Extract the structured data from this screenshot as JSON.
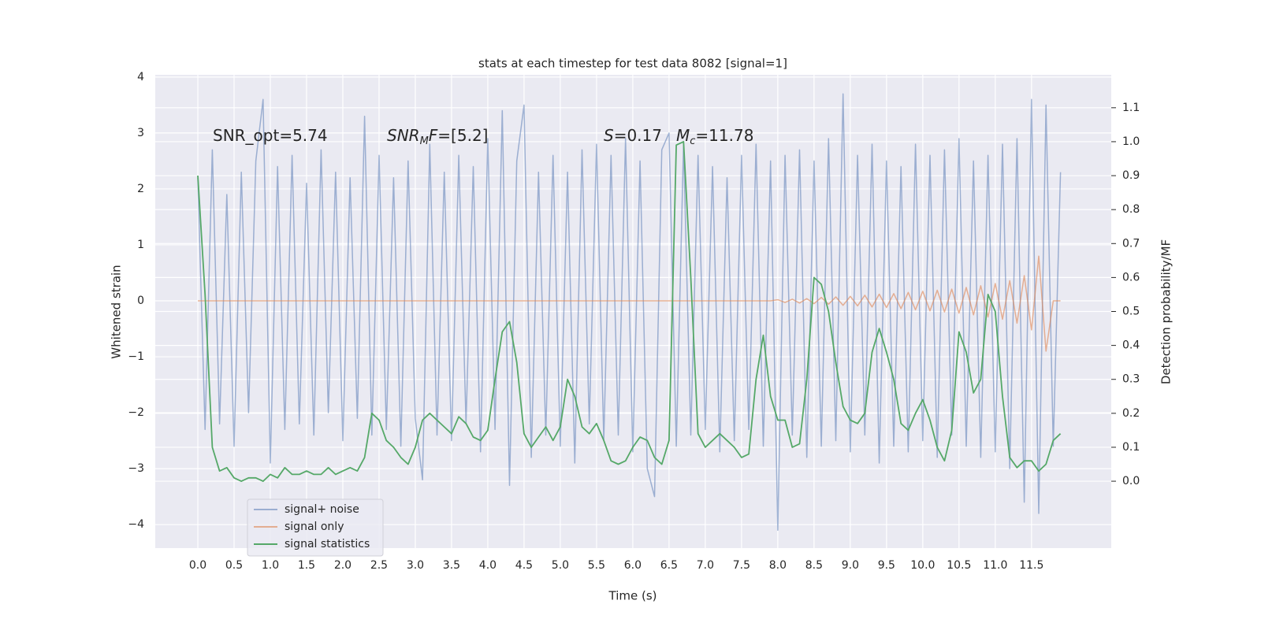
{
  "chart_data": {
    "type": "line",
    "title": "stats at each timestep for test data 8082 [signal=1]",
    "xlabel": "Time (s)",
    "ylabel": "Whitened strain",
    "y2label": "Detection probability/MF",
    "annotations": [
      [
        {
          "text": "SNR_opt=5.74"
        }
      ],
      [
        {
          "text": "SNR",
          "italic": true
        },
        {
          "text": "M",
          "italic": true,
          "sub": true
        },
        {
          "text": "F",
          "italic": true
        },
        {
          "text": "=[5.2]"
        }
      ],
      [
        {
          "text": "S",
          "italic": true
        },
        {
          "text": "=0.17"
        }
      ],
      [
        {
          "text": "M",
          "italic": true
        },
        {
          "text": "c",
          "italic": true,
          "sub": true
        },
        {
          "text": "=11.78"
        }
      ]
    ],
    "x": [
      0,
      0.1,
      0.2,
      0.3,
      0.4,
      0.5,
      0.6,
      0.7,
      0.8,
      0.9,
      1,
      1.1,
      1.2,
      1.3,
      1.4,
      1.5,
      1.6,
      1.7,
      1.8,
      1.9,
      2,
      2.1,
      2.2,
      2.3,
      2.4,
      2.5,
      2.6,
      2.7,
      2.8,
      2.9,
      3,
      3.1,
      3.2,
      3.3,
      3.4,
      3.5,
      3.6,
      3.7,
      3.8,
      3.9,
      4,
      4.1,
      4.2,
      4.3,
      4.4,
      4.5,
      4.6,
      4.7,
      4.8,
      4.9,
      5,
      5.1,
      5.2,
      5.3,
      5.4,
      5.5,
      5.6,
      5.7,
      5.8,
      5.9,
      6,
      6.1,
      6.2,
      6.3,
      6.4,
      6.5,
      6.6,
      6.7,
      6.8,
      6.9,
      7,
      7.1,
      7.2,
      7.3,
      7.4,
      7.5,
      7.6,
      7.7,
      7.8,
      7.9,
      8,
      8.1,
      8.2,
      8.3,
      8.4,
      8.5,
      8.6,
      8.7,
      8.8,
      8.9,
      9,
      9.1,
      9.2,
      9.3,
      9.4,
      9.5,
      9.6,
      9.7,
      9.8,
      9.9,
      10,
      10.1,
      10.2,
      10.3,
      10.4,
      10.5,
      10.6,
      10.7,
      10.8,
      10.9,
      11,
      11.1,
      11.2,
      11.3,
      11.4,
      11.5,
      11.6,
      11.7,
      11.8,
      11.9
    ],
    "series": [
      {
        "name": "signal+ noise",
        "color": "#4c72b0",
        "opacity": 0.5,
        "axis": "y",
        "values": [
          2.2,
          -2.3,
          2.7,
          -2.2,
          1.9,
          -2.6,
          2.3,
          -2.0,
          2.5,
          3.6,
          -2.9,
          2.4,
          -2.3,
          2.6,
          -2.2,
          2.1,
          -2.4,
          2.7,
          -2.0,
          2.3,
          -2.5,
          2.2,
          -2.1,
          3.3,
          -2.4,
          2.6,
          -2.3,
          2.2,
          -2.6,
          2.5,
          -2.1,
          -3.2,
          2.8,
          -2.4,
          2.3,
          -2.5,
          2.6,
          -2.2,
          2.4,
          -2.7,
          2.9,
          -2.3,
          3.4,
          -3.3,
          2.5,
          3.5,
          -2.8,
          2.3,
          -2.4,
          2.6,
          -2.6,
          2.3,
          -2.9,
          2.7,
          -2.2,
          2.8,
          -2.5,
          2.6,
          -2.4,
          2.9,
          -2.7,
          2.5,
          -3.0,
          -3.5,
          2.7,
          3.0,
          -2.6,
          2.8,
          -2.4,
          2.6,
          -2.3,
          2.4,
          -2.7,
          2.2,
          -2.5,
          2.6,
          -2.3,
          2.8,
          -2.6,
          2.5,
          -4.1,
          2.6,
          -2.4,
          2.7,
          -2.8,
          2.5,
          -2.6,
          2.9,
          -2.5,
          3.7,
          -2.7,
          2.6,
          -2.4,
          2.8,
          -2.9,
          2.5,
          -2.6,
          2.4,
          -2.7,
          2.8,
          -2.5,
          2.6,
          -2.8,
          2.7,
          -2.4,
          2.9,
          -2.6,
          2.5,
          -2.8,
          2.6,
          -2.7,
          2.8,
          -3.0,
          2.9,
          -3.6,
          3.6,
          -3.8,
          3.5,
          -2.6,
          2.3
        ]
      },
      {
        "name": "signal only",
        "color": "#dd8452",
        "opacity": 0.6,
        "axis": "y",
        "values": [
          0,
          0,
          0,
          0,
          0,
          0,
          0,
          0,
          0,
          0,
          0,
          0,
          0,
          0,
          0,
          0,
          0,
          0,
          0,
          0,
          0,
          0,
          0,
          0,
          0,
          0,
          0,
          0,
          0,
          0,
          0,
          0,
          0,
          0,
          0,
          0,
          0,
          0,
          0,
          0,
          0,
          0,
          0,
          0,
          0,
          0,
          0,
          0,
          0,
          0,
          0,
          0,
          0,
          0,
          0,
          0,
          0,
          0,
          0,
          0,
          0,
          0,
          0,
          0,
          0,
          0,
          0,
          0,
          0,
          0,
          0,
          0,
          0,
          0,
          0,
          0,
          0,
          0,
          0,
          0,
          0.02,
          -0.03,
          0.03,
          -0.04,
          0.04,
          -0.05,
          0.06,
          -0.06,
          0.07,
          -0.08,
          0.08,
          -0.09,
          0.1,
          -0.11,
          0.12,
          -0.12,
          0.13,
          -0.14,
          0.15,
          -0.16,
          0.17,
          -0.18,
          0.19,
          -0.2,
          0.21,
          -0.22,
          0.24,
          -0.25,
          0.27,
          -0.29,
          0.31,
          -0.33,
          0.36,
          -0.4,
          0.45,
          -0.52,
          0.8,
          -0.9,
          0,
          0
        ]
      },
      {
        "name": "signal statistics",
        "color": "#55a868",
        "opacity": 1,
        "axis": "y2",
        "values": [
          0.9,
          0.55,
          0.1,
          0.03,
          0.04,
          0.01,
          0.0,
          0.01,
          0.01,
          0.0,
          0.02,
          0.01,
          0.04,
          0.02,
          0.02,
          0.03,
          0.02,
          0.02,
          0.04,
          0.02,
          0.03,
          0.04,
          0.03,
          0.07,
          0.2,
          0.18,
          0.12,
          0.1,
          0.07,
          0.05,
          0.1,
          0.18,
          0.2,
          0.18,
          0.16,
          0.14,
          0.19,
          0.17,
          0.13,
          0.12,
          0.15,
          0.3,
          0.44,
          0.47,
          0.35,
          0.14,
          0.1,
          0.13,
          0.16,
          0.12,
          0.16,
          0.3,
          0.25,
          0.16,
          0.14,
          0.17,
          0.12,
          0.06,
          0.05,
          0.06,
          0.1,
          0.13,
          0.12,
          0.07,
          0.05,
          0.12,
          0.99,
          1.0,
          0.6,
          0.14,
          0.1,
          0.12,
          0.14,
          0.12,
          0.1,
          0.07,
          0.08,
          0.3,
          0.43,
          0.25,
          0.18,
          0.18,
          0.1,
          0.11,
          0.3,
          0.6,
          0.58,
          0.5,
          0.35,
          0.22,
          0.18,
          0.17,
          0.2,
          0.38,
          0.45,
          0.38,
          0.3,
          0.17,
          0.15,
          0.2,
          0.24,
          0.18,
          0.1,
          0.06,
          0.15,
          0.44,
          0.38,
          0.26,
          0.3,
          0.55,
          0.5,
          0.25,
          0.07,
          0.04,
          0.06,
          0.06,
          0.03,
          0.05,
          0.12,
          0.14
        ]
      }
    ],
    "xlim": [
      -0.587,
      12.6
    ],
    "ylim": [
      -4.42,
      4.04
    ],
    "y2lim": [
      -0.197,
      1.197
    ],
    "xticks": [
      {
        "value": 0,
        "label": "0.0"
      },
      0.5,
      {
        "value": 1,
        "label": "1.0"
      },
      1.5,
      {
        "value": 2,
        "label": "2.0"
      },
      2.5,
      {
        "value": 3,
        "label": "3.0"
      },
      3.5,
      {
        "value": 4,
        "label": "4.0"
      },
      4.5,
      {
        "value": 5,
        "label": "5.0"
      },
      5.5,
      {
        "value": 6,
        "label": "6.0"
      },
      6.5,
      {
        "value": 7,
        "label": "7.0"
      },
      7.5,
      {
        "value": 8,
        "label": "8.0"
      },
      8.5,
      {
        "value": 9,
        "label": "9.0"
      },
      9.5,
      {
        "value": 10,
        "label": "10.0"
      },
      10.5,
      {
        "value": 11,
        "label": "11.0"
      },
      11.5
    ],
    "yticks": [
      {
        "value": -4,
        "label": "−4"
      },
      {
        "value": -3,
        "label": "−3"
      },
      {
        "value": -2,
        "label": "−2"
      },
      {
        "value": -1,
        "label": "−1"
      },
      0,
      1,
      2,
      3,
      4
    ],
    "y2ticks": [
      {
        "value": 0,
        "label": "0.0"
      },
      0.1,
      0.2,
      0.3,
      0.4,
      0.5,
      0.6,
      0.7,
      0.8,
      0.9,
      {
        "value": 1,
        "label": "1.0"
      },
      1.1
    ],
    "grid": true,
    "legend": "lower left"
  }
}
